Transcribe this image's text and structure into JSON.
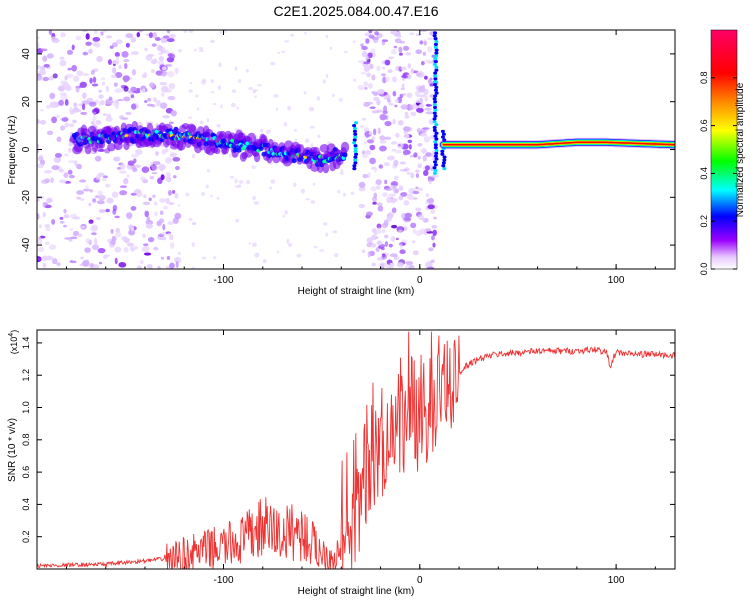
{
  "page_title": "C2E1.2025.084.00.47.E16",
  "chart_data": [
    {
      "type": "heatmap",
      "title": "C2E1.2025.084.00.47.E16",
      "xlabel": "Height of straight line (km)",
      "ylabel": "Frequency (Hz)",
      "xlim": [
        -195,
        130
      ],
      "ylim": [
        -50,
        50
      ],
      "x_ticks": [
        -100,
        0,
        100
      ],
      "y_ticks": [
        -40,
        -20,
        0,
        20,
        40
      ],
      "x_tick_labels": [
        "-100",
        "0",
        "100"
      ],
      "y_tick_labels": [
        "-40",
        "-20",
        "0",
        "20",
        "40"
      ],
      "colorbar": {
        "label": "Normalized spectral amplitude",
        "range": [
          0,
          1
        ],
        "ticks": [
          0.0,
          0.2,
          0.4,
          0.6,
          0.8
        ],
        "tick_labels": [
          "0.0",
          "0.2",
          "0.4",
          "0.6",
          "0.8"
        ],
        "colormap": [
          "#ff00ff",
          "#8800ff",
          "#0000ff",
          "#00ffff",
          "#00ff00",
          "#ffff00",
          "#ff8800",
          "#ff0000",
          "#ff0088"
        ]
      },
      "features": {
        "signal_line": [
          {
            "x": -176,
            "y": 4
          },
          {
            "x": -160,
            "y": 5
          },
          {
            "x": -145,
            "y": 6
          },
          {
            "x": -130,
            "y": 6
          },
          {
            "x": -115,
            "y": 5
          },
          {
            "x": -100,
            "y": 3
          },
          {
            "x": -85,
            "y": 1
          },
          {
            "x": -70,
            "y": -1
          },
          {
            "x": -60,
            "y": -3
          },
          {
            "x": -50,
            "y": -4
          },
          {
            "x": -38,
            "y": -2
          }
        ],
        "carrier_line": [
          {
            "x": 12,
            "y": 2
          },
          {
            "x": 60,
            "y": 2
          },
          {
            "x": 80,
            "y": 3
          },
          {
            "x": 95,
            "y": 3
          },
          {
            "x": 130,
            "y": 2
          }
        ],
        "noise_regions": [
          [
            -195,
            -123
          ],
          [
            -30,
            8
          ]
        ]
      }
    },
    {
      "type": "line",
      "xlabel": "Height of straight line (km)",
      "ylabel": "SNR (10 * v/v)",
      "y_multiplier": "(x10",
      "y_multiplier_exp": "4",
      "y_multiplier_close": ")",
      "xlim": [
        -195,
        130
      ],
      "ylim": [
        0,
        1.48
      ],
      "x_ticks": [
        -100,
        0,
        100
      ],
      "y_ticks": [
        0.2,
        0.4,
        0.6,
        0.8,
        1.0,
        1.2,
        1.4
      ],
      "x_tick_labels": [
        "-100",
        "0",
        "100"
      ],
      "y_tick_labels": [
        "0.2",
        "0.4",
        "0.6",
        "0.8",
        "1.0",
        "1.2",
        "1.4"
      ],
      "series": [
        {
          "color": "#ee3333",
          "x": [
            -195,
            -160,
            -140,
            -125,
            -115,
            -100,
            -90,
            -85,
            -80,
            -75,
            -70,
            -65,
            -60,
            -55,
            -50,
            -45,
            -40,
            -35,
            -32,
            -30,
            -28,
            -25,
            -22,
            -20,
            -18,
            -15,
            -12,
            -10,
            -8,
            -5,
            -2,
            0,
            3,
            5,
            8,
            10,
            12,
            15,
            18,
            20,
            25,
            30,
            35,
            40,
            50,
            60,
            70,
            80,
            90,
            95,
            97,
            100,
            110,
            120,
            130
          ],
          "y": [
            0.02,
            0.03,
            0.05,
            0.07,
            0.1,
            0.14,
            0.18,
            0.22,
            0.26,
            0.24,
            0.2,
            0.24,
            0.22,
            0.16,
            0.1,
            0.08,
            0.1,
            0.18,
            0.3,
            0.45,
            0.6,
            0.7,
            0.72,
            0.8,
            0.75,
            0.85,
            0.82,
            0.95,
            0.88,
            1.0,
            0.92,
            0.98,
            1.02,
            0.95,
            1.1,
            1.12,
            1.05,
            1.15,
            1.2,
            1.22,
            1.27,
            1.3,
            1.32,
            1.33,
            1.34,
            1.35,
            1.35,
            1.35,
            1.36,
            1.34,
            1.26,
            1.34,
            1.33,
            1.33,
            1.32
          ]
        }
      ]
    }
  ]
}
